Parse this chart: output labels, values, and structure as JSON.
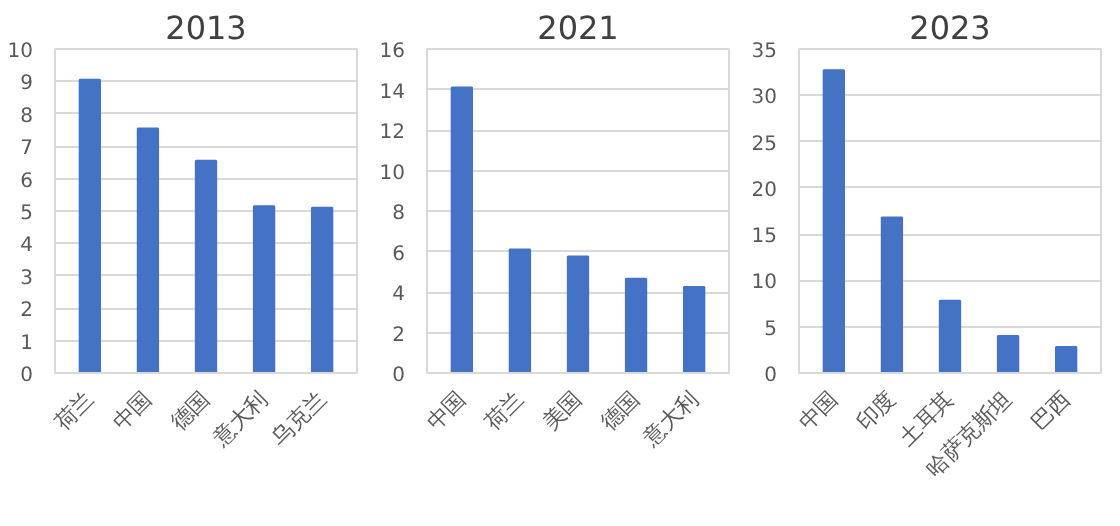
{
  "chart_data": [
    {
      "type": "bar",
      "title": "2013",
      "categories": [
        "荷兰",
        "中国",
        "德国",
        "意大利",
        "乌克兰"
      ],
      "values": [
        9.05,
        7.55,
        6.55,
        5.15,
        5.1
      ],
      "color": "#4472c4",
      "ylim": [
        0,
        10
      ],
      "yticks": [
        0,
        1,
        2,
        3,
        4,
        5,
        6,
        7,
        8,
        9,
        10
      ],
      "grid": "y"
    },
    {
      "type": "bar",
      "title": "2021",
      "categories": [
        "中国",
        "荷兰",
        "美国",
        "德国",
        "意大利"
      ],
      "values": [
        14.1,
        6.1,
        5.75,
        4.65,
        4.25
      ],
      "color": "#4472c4",
      "ylim": [
        0,
        16
      ],
      "yticks": [
        0,
        2,
        4,
        6,
        8,
        10,
        12,
        14,
        16
      ],
      "grid": "y"
    },
    {
      "type": "bar",
      "title": "2023",
      "categories": [
        "中国",
        "印度",
        "土耳其",
        "哈萨克斯坦",
        "巴西"
      ],
      "values": [
        32.7,
        16.8,
        7.8,
        4.0,
        2.8
      ],
      "color": "#4472c4",
      "ylim": [
        0,
        35
      ],
      "yticks": [
        0,
        5,
        10,
        15,
        20,
        25,
        30,
        35
      ],
      "grid": "y"
    }
  ]
}
